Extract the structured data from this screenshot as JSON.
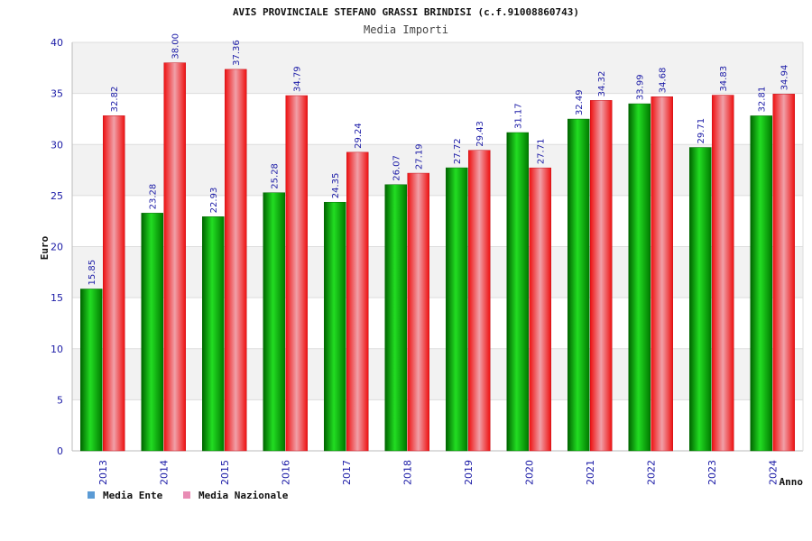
{
  "chart_data": {
    "type": "bar",
    "title": "AVIS PROVINCIALE STEFANO GRASSI BRINDISI (c.f.91008860743)",
    "subtitle": "Media Importi",
    "xlabel": "Anno",
    "ylabel": "Euro",
    "ylim": [
      0,
      40
    ],
    "yticks": [
      "0",
      "5",
      "10",
      "15",
      "20",
      "25",
      "30",
      "35",
      "40"
    ],
    "categories": [
      "2013",
      "2014",
      "2015",
      "2016",
      "2017",
      "2018",
      "2019",
      "2020",
      "2021",
      "2022",
      "2023",
      "2024"
    ],
    "series": [
      {
        "name": "Media Ente",
        "values": [
          15.85,
          23.28,
          22.93,
          25.28,
          24.35,
          26.07,
          27.72,
          31.17,
          32.49,
          33.99,
          29.71,
          32.81
        ],
        "labels": [
          "15.85",
          "23.28",
          "22.93",
          "25.28",
          "24.35",
          "26.07",
          "27.72",
          "31.17",
          "32.49",
          "33.99",
          "29.71",
          "32.81"
        ]
      },
      {
        "name": "Media Nazionale",
        "values": [
          32.82,
          38.0,
          37.36,
          34.79,
          29.24,
          27.19,
          29.43,
          27.71,
          34.32,
          34.68,
          34.83,
          34.94
        ],
        "labels": [
          "32.82",
          "38.00",
          "37.36",
          "34.79",
          "29.24",
          "27.19",
          "29.43",
          "27.71",
          "34.32",
          "34.68",
          "34.83",
          "34.94"
        ]
      }
    ],
    "grid": true,
    "legend_position": "bottom-left"
  },
  "colors": {
    "ente_bar": "#00b000",
    "nazionale_bar": "#e8202a",
    "legend_ente": "#5b9bd5",
    "legend_nazionale": "#e88cb4",
    "band": "#f2f2f2",
    "text_blue": "#1a1aa6"
  }
}
